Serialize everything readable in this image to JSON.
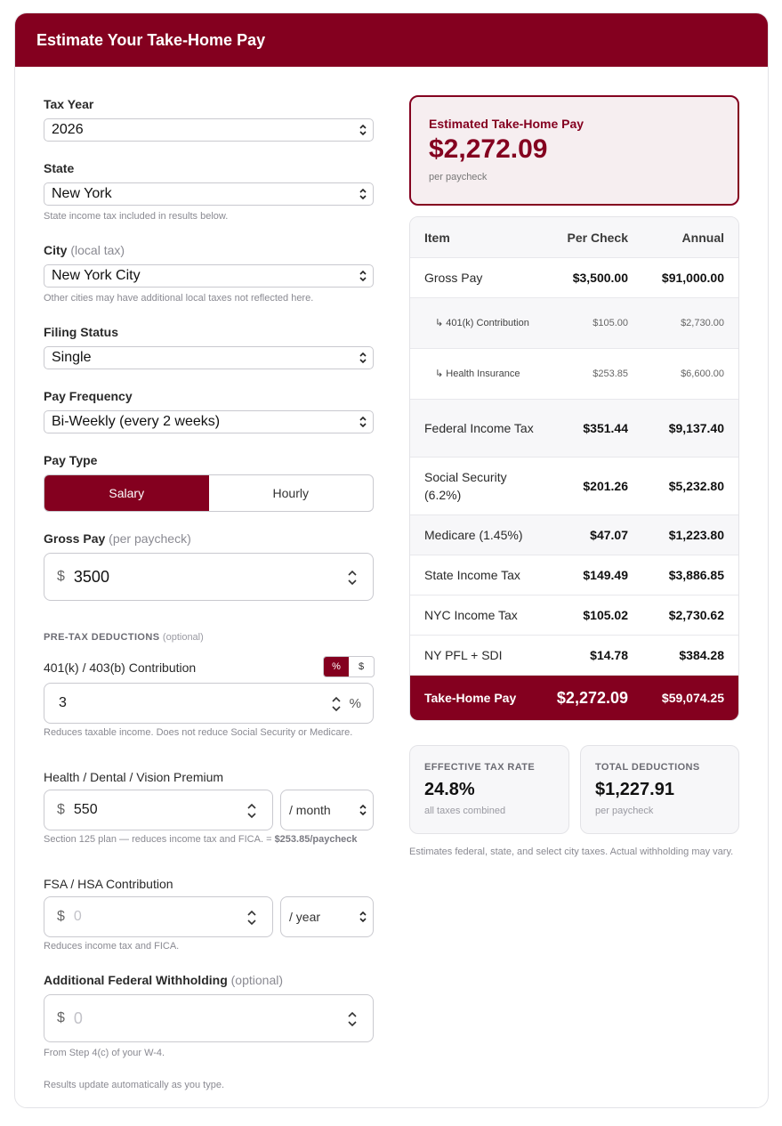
{
  "header": {
    "title": "Estimate Your Take-Home Pay"
  },
  "form": {
    "tax_year": {
      "label": "Tax Year",
      "value": "2026"
    },
    "state": {
      "label": "State",
      "value": "New York",
      "help": "State income tax included in results below."
    },
    "city": {
      "label": "City",
      "label_suffix": "(local tax)",
      "value": "New York City",
      "help": "Other cities may have additional local taxes not reflected here."
    },
    "filing_status": {
      "label": "Filing Status",
      "value": "Single"
    },
    "pay_frequency": {
      "label": "Pay Frequency",
      "value": "Bi-Weekly (every 2 weeks)"
    },
    "pay_type": {
      "label": "Pay Type",
      "options": [
        "Salary",
        "Hourly"
      ],
      "selected": "Salary"
    },
    "gross_pay": {
      "label": "Gross Pay",
      "label_suffix": "(per paycheck)",
      "currency": "$",
      "value": "3500"
    },
    "pretax": {
      "title": "PRE-TAX DEDUCTIONS",
      "title_suffix": "(optional)"
    },
    "retirement": {
      "label": "401(k) / 403(b) Contribution",
      "toggle": [
        "%",
        "$"
      ],
      "selected": "%",
      "value": "3",
      "unit": "%",
      "help": "Reduces taxable income. Does not reduce Social Security or Medicare."
    },
    "health": {
      "label": "Health / Dental / Vision Premium",
      "currency": "$",
      "value": "550",
      "period": "/ month",
      "help_text": "Section 125 plan — reduces income tax and FICA. = ",
      "help_strong": "$253.85/paycheck"
    },
    "fsa": {
      "label": "FSA / HSA Contribution",
      "currency": "$",
      "placeholder": "0",
      "period": "/ year",
      "help": "Reduces income tax and FICA."
    },
    "additional_withholding": {
      "label": "Additional Federal Withholding",
      "label_suffix": "(optional)",
      "currency": "$",
      "placeholder": "0",
      "help": "From Step 4(c) of your W-4."
    },
    "footer_note": "Results update automatically as you type."
  },
  "results": {
    "hero": {
      "label": "Estimated Take-Home Pay",
      "value": "$2,272.09",
      "sub": "per paycheck"
    },
    "table": {
      "headers": [
        "Item",
        "Per Check",
        "Annual"
      ],
      "rows": [
        {
          "item": "Gross Pay",
          "per_check": "$3,500.00",
          "annual": "$91,000.00"
        },
        {
          "item": "↳ 401(k) Contribution",
          "per_check": "$105.00",
          "annual": "$2,730.00"
        },
        {
          "item": "↳ Health Insurance",
          "per_check": "$253.85",
          "annual": "$6,600.00"
        },
        {
          "item": "Federal Income Tax",
          "per_check": "$351.44",
          "annual": "$9,137.40"
        },
        {
          "item": "Social Security (6.2%)",
          "per_check": "$201.26",
          "annual": "$5,232.80"
        },
        {
          "item": "Medicare (1.45%)",
          "per_check": "$47.07",
          "annual": "$1,223.80"
        },
        {
          "item": "State Income Tax",
          "per_check": "$149.49",
          "annual": "$3,886.85"
        },
        {
          "item": "NYC Income Tax",
          "per_check": "$105.02",
          "annual": "$2,730.62"
        },
        {
          "item": "NY PFL + SDI",
          "per_check": "$14.78",
          "annual": "$384.28"
        }
      ],
      "total": {
        "item": "Take-Home Pay",
        "per_check": "$2,272.09",
        "annual": "$59,074.25"
      }
    },
    "effective_rate": {
      "label": "EFFECTIVE TAX RATE",
      "value": "24.8%",
      "sub": "all taxes combined"
    },
    "total_deductions": {
      "label": "TOTAL DEDUCTIONS",
      "value": "$1,227.91",
      "sub": "per paycheck"
    },
    "disclaimer": "Estimates federal, state, and select city taxes. Actual withholding may vary."
  },
  "colors": {
    "accent": "#84001f",
    "hero_bg": "#f6eef0"
  }
}
